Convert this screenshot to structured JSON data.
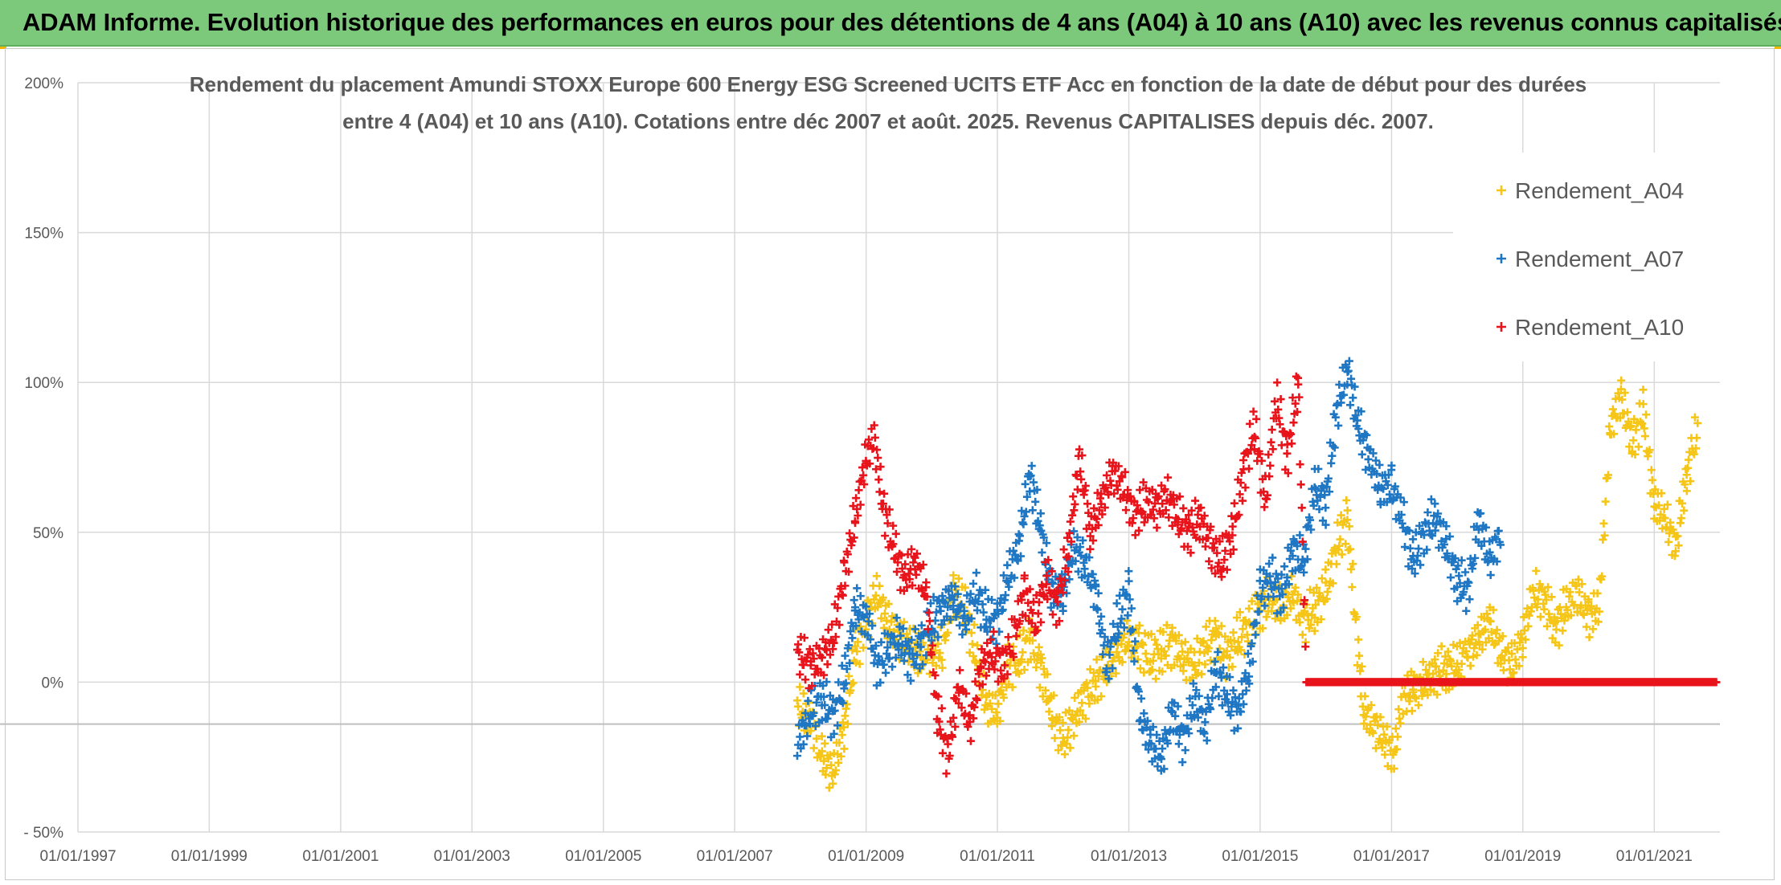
{
  "header": {
    "title": "ADAM Informe. Evolution historique des performances en euros pour des détentions de 4 ans (A04) à 10 ans (A10) avec les revenus connus capitalisés"
  },
  "colors": {
    "header_bg": "#7dc97c",
    "A04": "#f5c518",
    "A07": "#1f77c4",
    "A10": "#e8141b",
    "grid": "#d9d9d9",
    "text": "#595959"
  },
  "chart_data": {
    "type": "scatter",
    "title_line1": "Rendement du placement Amundi STOXX Europe 600 Energy ESG Screened UCITS ETF Acc en fonction de la date de début pour des durées",
    "title_line2": "entre 4 (A04) et 10 ans (A10). Cotations entre déc 2007 et août. 2025. Revenus CAPITALISES depuis déc. 2007.",
    "xlabel": "",
    "ylabel": "",
    "x_ticks": [
      "01/01/1997",
      "01/01/1999",
      "01/01/2001",
      "01/01/2003",
      "01/01/2005",
      "01/01/2007",
      "01/01/2009",
      "01/01/2011",
      "01/01/2013",
      "01/01/2015",
      "01/01/2017",
      "01/01/2019",
      "01/01/2021"
    ],
    "x_range": [
      "1997-01-01",
      "2022-01-01"
    ],
    "y_ticks": [
      "200%",
      "150%",
      "100%",
      "50%",
      "0%",
      "- 50%"
    ],
    "ylim": [
      -50,
      200
    ],
    "grid": true,
    "legend_position": "top-right",
    "marker": "+",
    "series": [
      {
        "name": "Rendement_A04",
        "color": "#f5c518",
        "points": [
          [
            "2007-12-15",
            -8
          ],
          [
            "2008-03-01",
            -12
          ],
          [
            "2008-05-01",
            -25
          ],
          [
            "2008-07-01",
            -30
          ],
          [
            "2008-09-01",
            -15
          ],
          [
            "2008-11-01",
            10
          ],
          [
            "2009-01-15",
            22
          ],
          [
            "2009-03-01",
            30
          ],
          [
            "2009-05-01",
            20
          ],
          [
            "2009-07-01",
            15
          ],
          [
            "2009-09-01",
            12
          ],
          [
            "2009-11-01",
            10
          ],
          [
            "2010-01-01",
            10
          ],
          [
            "2010-03-01",
            12
          ],
          [
            "2010-05-01",
            30
          ],
          [
            "2010-07-01",
            25
          ],
          [
            "2010-09-01",
            10
          ],
          [
            "2010-11-01",
            -8
          ],
          [
            "2011-01-01",
            -10
          ],
          [
            "2011-03-01",
            5
          ],
          [
            "2011-05-01",
            8
          ],
          [
            "2011-07-01",
            15
          ],
          [
            "2011-09-01",
            5
          ],
          [
            "2011-11-01",
            -10
          ],
          [
            "2012-01-01",
            -20
          ],
          [
            "2012-03-01",
            -12
          ],
          [
            "2012-05-01",
            -5
          ],
          [
            "2012-07-01",
            0
          ],
          [
            "2012-09-01",
            5
          ],
          [
            "2012-11-01",
            10
          ],
          [
            "2013-01-01",
            15
          ],
          [
            "2013-03-01",
            12
          ],
          [
            "2013-05-01",
            8
          ],
          [
            "2013-07-01",
            10
          ],
          [
            "2013-09-01",
            13
          ],
          [
            "2013-11-01",
            8
          ],
          [
            "2014-01-01",
            5
          ],
          [
            "2014-03-01",
            12
          ],
          [
            "2014-05-01",
            15
          ],
          [
            "2014-07-01",
            8
          ],
          [
            "2014-09-01",
            15
          ],
          [
            "2014-11-01",
            18
          ],
          [
            "2015-01-01",
            25
          ],
          [
            "2015-03-01",
            28
          ],
          [
            "2015-05-01",
            25
          ],
          [
            "2015-07-01",
            30
          ],
          [
            "2015-09-01",
            20
          ],
          [
            "2015-11-01",
            25
          ],
          [
            "2016-01-01",
            30
          ],
          [
            "2016-03-01",
            45
          ],
          [
            "2016-05-01",
            55
          ],
          [
            "2016-06-15",
            20
          ],
          [
            "2016-08-01",
            -10
          ],
          [
            "2016-10-01",
            -15
          ],
          [
            "2016-12-01",
            -20
          ],
          [
            "2017-01-15",
            -25
          ],
          [
            "2017-03-01",
            -5
          ],
          [
            "2017-05-01",
            -3
          ],
          [
            "2017-07-01",
            0
          ],
          [
            "2017-09-01",
            3
          ],
          [
            "2017-11-01",
            5
          ],
          [
            "2018-01-01",
            5
          ],
          [
            "2018-03-01",
            10
          ],
          [
            "2018-05-01",
            15
          ],
          [
            "2018-07-01",
            20
          ],
          [
            "2018-09-01",
            10
          ],
          [
            "2018-11-01",
            5
          ],
          [
            "2019-01-01",
            15
          ],
          [
            "2019-03-01",
            30
          ],
          [
            "2019-05-01",
            28
          ],
          [
            "2019-07-01",
            18
          ],
          [
            "2019-09-01",
            25
          ],
          [
            "2019-11-01",
            30
          ],
          [
            "2020-01-01",
            22
          ],
          [
            "2020-03-01",
            25
          ],
          [
            "2020-05-01",
            85
          ],
          [
            "2020-07-01",
            95
          ],
          [
            "2020-09-01",
            80
          ],
          [
            "2020-11-01",
            90
          ],
          [
            "2021-01-01",
            60
          ],
          [
            "2021-03-01",
            55
          ],
          [
            "2021-05-01",
            45
          ],
          [
            "2021-07-01",
            70
          ],
          [
            "2021-09-01",
            85
          ]
        ]
      },
      {
        "name": "Rendement_A07",
        "color": "#1f77c4",
        "points": [
          [
            "2007-12-15",
            -20
          ],
          [
            "2008-03-01",
            -10
          ],
          [
            "2008-05-01",
            -5
          ],
          [
            "2008-07-01",
            -12
          ],
          [
            "2008-09-01",
            0
          ],
          [
            "2008-11-01",
            25
          ],
          [
            "2009-01-15",
            20
          ],
          [
            "2009-03-01",
            5
          ],
          [
            "2009-05-01",
            10
          ],
          [
            "2009-07-01",
            15
          ],
          [
            "2009-09-01",
            8
          ],
          [
            "2009-11-01",
            12
          ],
          [
            "2010-01-01",
            20
          ],
          [
            "2010-03-01",
            25
          ],
          [
            "2010-05-01",
            28
          ],
          [
            "2010-07-01",
            20
          ],
          [
            "2010-09-01",
            30
          ],
          [
            "2010-11-01",
            22
          ],
          [
            "2011-01-01",
            20
          ],
          [
            "2011-03-01",
            35
          ],
          [
            "2011-05-01",
            45
          ],
          [
            "2011-07-01",
            70
          ],
          [
            "2011-09-01",
            50
          ],
          [
            "2011-11-01",
            30
          ],
          [
            "2012-01-01",
            30
          ],
          [
            "2012-03-01",
            45
          ],
          [
            "2012-05-01",
            40
          ],
          [
            "2012-07-01",
            30
          ],
          [
            "2012-09-01",
            5
          ],
          [
            "2012-11-01",
            20
          ],
          [
            "2013-01-01",
            30
          ],
          [
            "2013-03-01",
            -10
          ],
          [
            "2013-05-01",
            -20
          ],
          [
            "2013-07-01",
            -25
          ],
          [
            "2013-09-01",
            -10
          ],
          [
            "2013-11-01",
            -20
          ],
          [
            "2014-01-01",
            -5
          ],
          [
            "2014-03-01",
            -15
          ],
          [
            "2014-05-01",
            5
          ],
          [
            "2014-07-01",
            -5
          ],
          [
            "2014-09-01",
            -10
          ],
          [
            "2014-11-01",
            5
          ],
          [
            "2015-01-01",
            30
          ],
          [
            "2015-03-01",
            35
          ],
          [
            "2015-05-01",
            28
          ],
          [
            "2015-07-01",
            45
          ],
          [
            "2015-09-01",
            40
          ],
          [
            "2015-11-01",
            65
          ],
          [
            "2016-01-01",
            60
          ],
          [
            "2016-03-01",
            90
          ],
          [
            "2016-05-01",
            105
          ],
          [
            "2016-07-01",
            85
          ],
          [
            "2016-09-01",
            75
          ],
          [
            "2016-11-01",
            65
          ],
          [
            "2017-01-01",
            65
          ],
          [
            "2017-03-01",
            55
          ],
          [
            "2017-05-01",
            40
          ],
          [
            "2017-07-01",
            50
          ],
          [
            "2017-09-01",
            55
          ],
          [
            "2017-11-01",
            45
          ],
          [
            "2018-01-01",
            35
          ],
          [
            "2018-03-01",
            30
          ],
          [
            "2018-05-01",
            55
          ],
          [
            "2018-07-01",
            40
          ],
          [
            "2018-09-01",
            50
          ]
        ]
      },
      {
        "name": "Rendement_A10",
        "color": "#e8141b",
        "points": [
          [
            "2007-12-15",
            10
          ],
          [
            "2008-03-01",
            5
          ],
          [
            "2008-05-01",
            8
          ],
          [
            "2008-07-01",
            15
          ],
          [
            "2008-09-01",
            35
          ],
          [
            "2008-11-01",
            55
          ],
          [
            "2009-01-01",
            75
          ],
          [
            "2009-02-15",
            82
          ],
          [
            "2009-04-01",
            60
          ],
          [
            "2009-06-01",
            45
          ],
          [
            "2009-08-01",
            35
          ],
          [
            "2009-10-01",
            40
          ],
          [
            "2009-12-01",
            30
          ],
          [
            "2010-02-01",
            -10
          ],
          [
            "2010-04-01",
            -25
          ],
          [
            "2010-06-01",
            0
          ],
          [
            "2010-08-01",
            -15
          ],
          [
            "2010-10-01",
            5
          ],
          [
            "2010-12-01",
            10
          ],
          [
            "2011-02-01",
            5
          ],
          [
            "2011-04-01",
            15
          ],
          [
            "2011-06-01",
            30
          ],
          [
            "2011-08-01",
            20
          ],
          [
            "2011-10-01",
            35
          ],
          [
            "2011-12-01",
            25
          ],
          [
            "2012-02-01",
            45
          ],
          [
            "2012-04-01",
            75
          ],
          [
            "2012-06-01",
            50
          ],
          [
            "2012-08-01",
            60
          ],
          [
            "2012-10-01",
            70
          ],
          [
            "2012-12-01",
            65
          ],
          [
            "2013-02-01",
            55
          ],
          [
            "2013-04-01",
            60
          ],
          [
            "2013-06-01",
            58
          ],
          [
            "2013-08-01",
            62
          ],
          [
            "2013-10-01",
            55
          ],
          [
            "2013-12-01",
            50
          ],
          [
            "2014-02-01",
            55
          ],
          [
            "2014-04-01",
            45
          ],
          [
            "2014-06-01",
            40
          ],
          [
            "2014-08-01",
            50
          ],
          [
            "2014-10-01",
            70
          ],
          [
            "2014-12-01",
            85
          ],
          [
            "2015-02-01",
            60
          ],
          [
            "2015-04-01",
            95
          ],
          [
            "2015-06-01",
            75
          ],
          [
            "2015-08-01",
            100
          ],
          [
            "2015-09-15",
            0
          ],
          [
            "2016-06-01",
            0
          ],
          [
            "2017-01-01",
            0
          ],
          [
            "2017-08-01",
            0
          ],
          [
            "2018-03-01",
            0
          ],
          [
            "2018-10-01",
            0
          ],
          [
            "2019-05-01",
            0
          ],
          [
            "2019-12-01",
            0
          ],
          [
            "2020-07-01",
            0
          ],
          [
            "2021-02-01",
            0
          ],
          [
            "2021-09-01",
            0
          ],
          [
            "2021-12-15",
            0
          ]
        ]
      }
    ]
  }
}
